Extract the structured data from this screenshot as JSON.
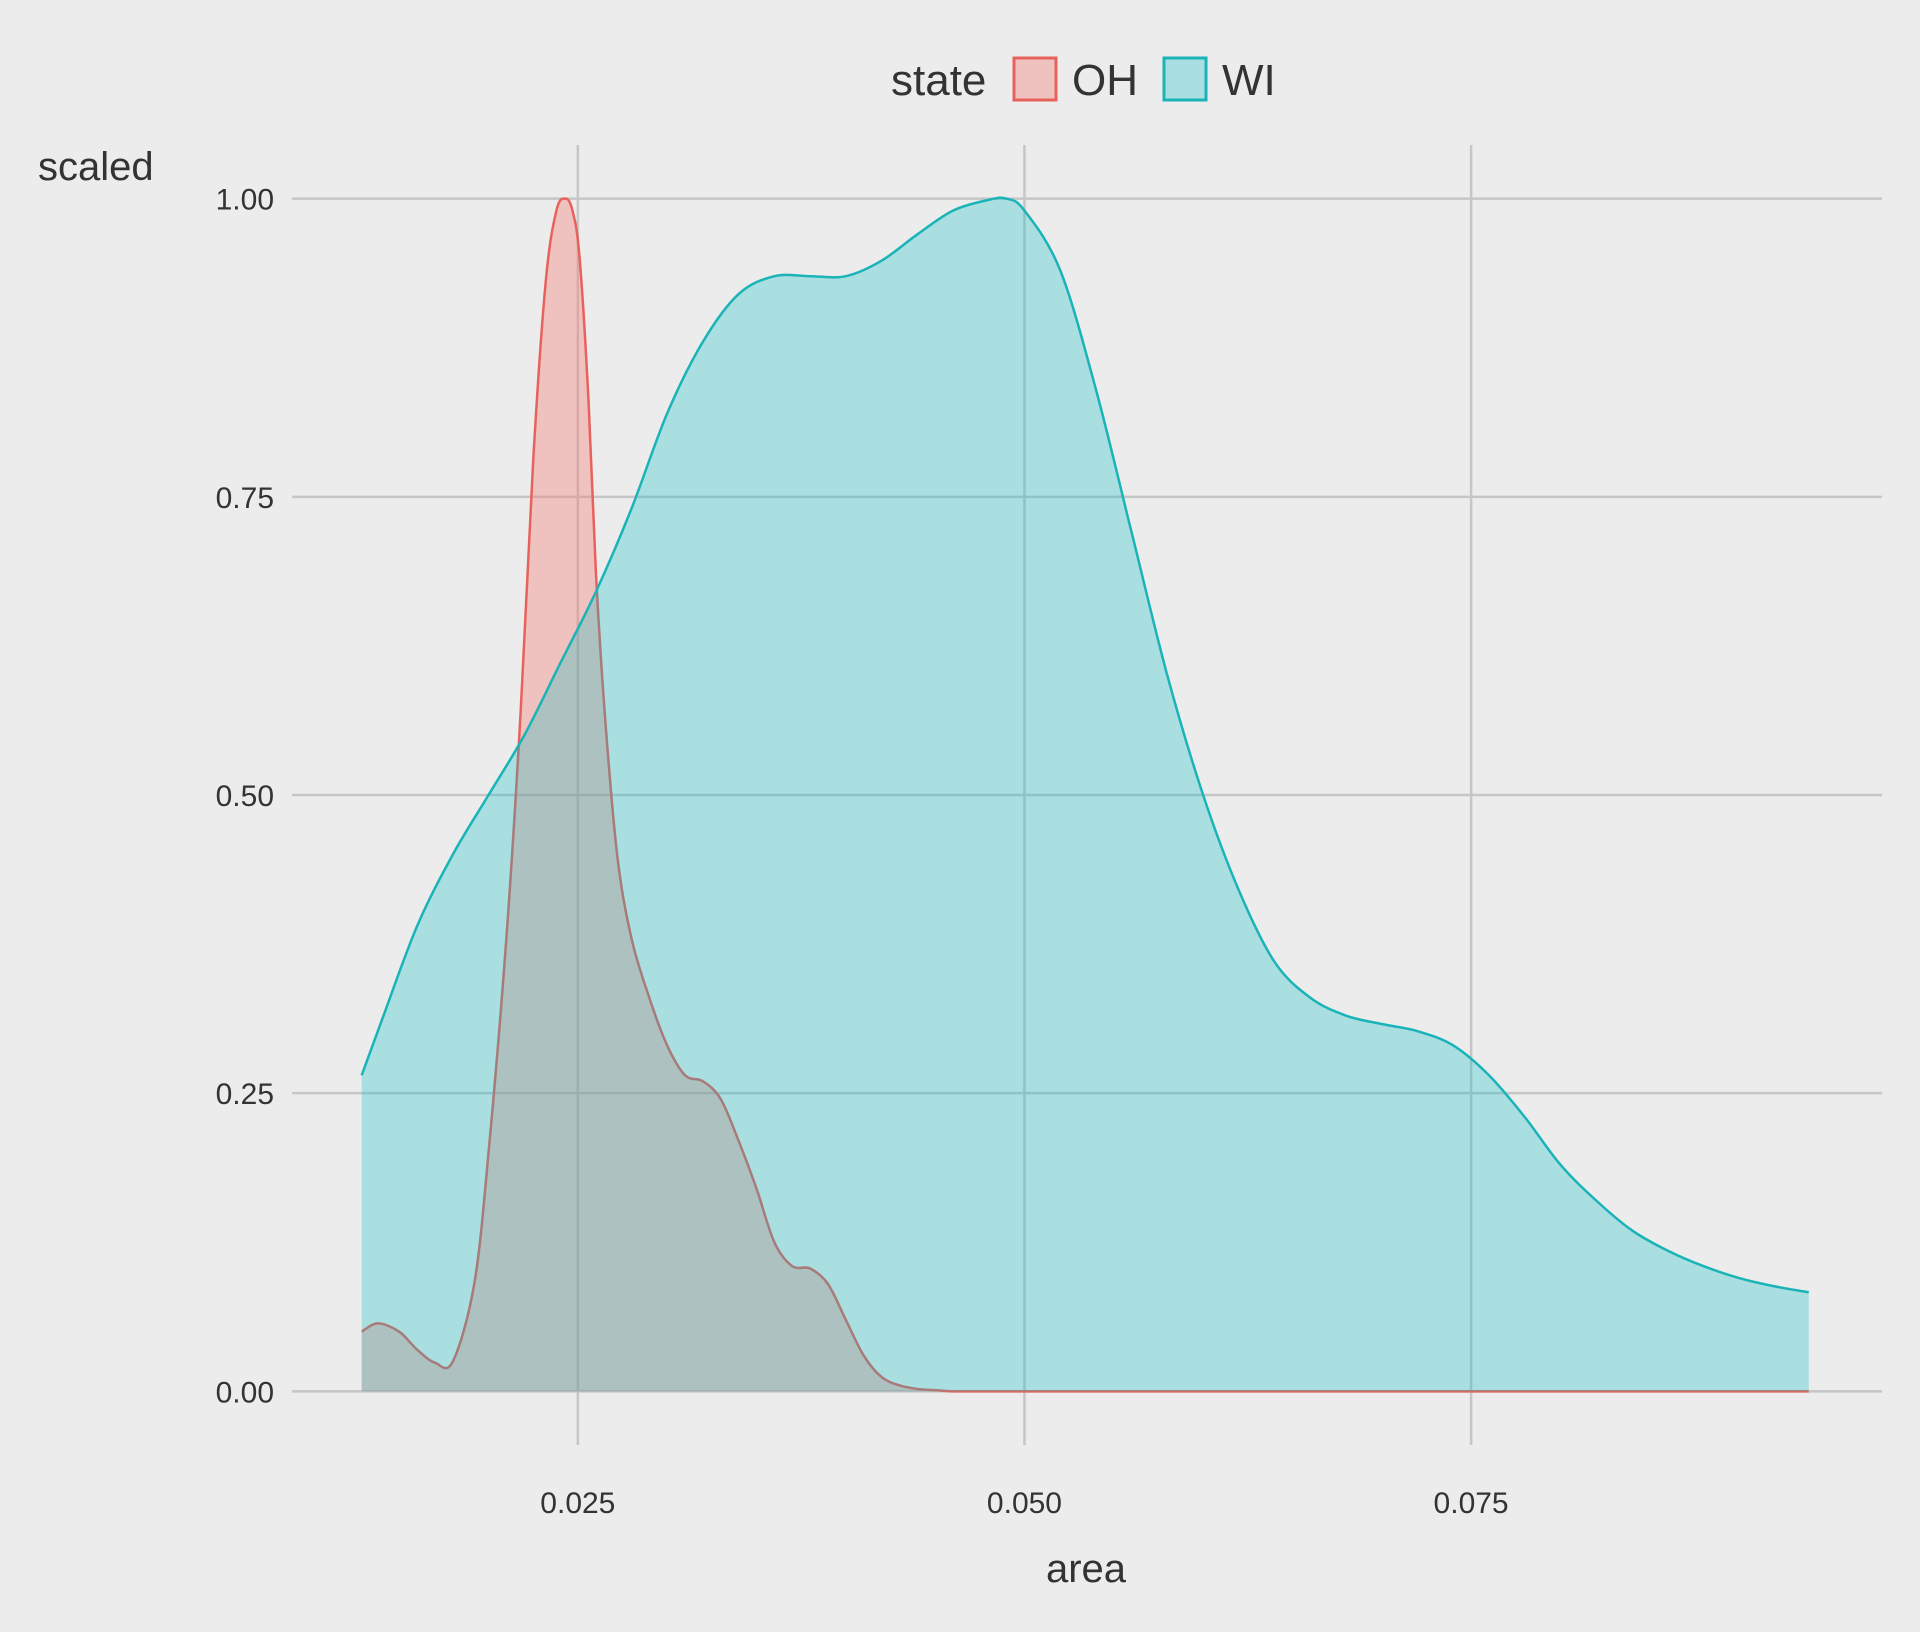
{
  "chart_data": {
    "type": "area",
    "xlabel": "area",
    "ylabel": "scaled",
    "xlim": [
      0.009,
      0.098
    ],
    "ylim": [
      -0.045,
      1.045
    ],
    "x_ticks": [
      0.025,
      0.05,
      0.075
    ],
    "x_tick_labels": [
      "0.025",
      "0.050",
      "0.075"
    ],
    "y_ticks": [
      0,
      0.25,
      0.5,
      0.75,
      1.0
    ],
    "y_tick_labels": [
      "0.00",
      "0.25",
      "0.50",
      "0.75",
      "1.00"
    ],
    "grid": true,
    "legend": {
      "title": "state",
      "placement": "top",
      "entries": [
        "OH",
        "WI"
      ]
    },
    "series": [
      {
        "name": "OH",
        "line_color": "#e8625c",
        "fill_color": "#f8766d",
        "x": [
          0.0129,
          0.0138,
          0.015,
          0.016,
          0.017,
          0.018,
          0.0192,
          0.02,
          0.021,
          0.0218,
          0.0225,
          0.0232,
          0.0238,
          0.0243,
          0.0247,
          0.0251,
          0.0256,
          0.026,
          0.0265,
          0.0272,
          0.028,
          0.029,
          0.03,
          0.031,
          0.032,
          0.033,
          0.034,
          0.035,
          0.036,
          0.037,
          0.038,
          0.039,
          0.04,
          0.041,
          0.042,
          0.043,
          0.044,
          0.045,
          0.046,
          0.047,
          0.048,
          0.05,
          0.06,
          0.07,
          0.08,
          0.09,
          0.0939
        ],
        "y": [
          0.05,
          0.057,
          0.05,
          0.035,
          0.024,
          0.025,
          0.09,
          0.2,
          0.38,
          0.57,
          0.78,
          0.93,
          0.99,
          1.0,
          0.99,
          0.95,
          0.83,
          0.69,
          0.57,
          0.45,
          0.38,
          0.33,
          0.29,
          0.265,
          0.26,
          0.245,
          0.21,
          0.17,
          0.125,
          0.105,
          0.103,
          0.09,
          0.06,
          0.03,
          0.012,
          0.005,
          0.002,
          0.001,
          0.0,
          0.0,
          0.0,
          0.0,
          0.0,
          0.0,
          0.0,
          0.0,
          0.0
        ]
      },
      {
        "name": "WI",
        "line_color": "#1ab3b8",
        "fill_color": "#00bfc4",
        "x": [
          0.0129,
          0.014,
          0.016,
          0.018,
          0.02,
          0.022,
          0.024,
          0.026,
          0.028,
          0.03,
          0.032,
          0.034,
          0.036,
          0.038,
          0.04,
          0.042,
          0.044,
          0.046,
          0.048,
          0.049,
          0.05,
          0.052,
          0.054,
          0.056,
          0.058,
          0.06,
          0.062,
          0.064,
          0.066,
          0.068,
          0.07,
          0.072,
          0.074,
          0.076,
          0.078,
          0.08,
          0.082,
          0.084,
          0.086,
          0.088,
          0.09,
          0.092,
          0.0939
        ],
        "y": [
          0.265,
          0.31,
          0.39,
          0.45,
          0.5,
          0.55,
          0.61,
          0.67,
          0.74,
          0.82,
          0.88,
          0.92,
          0.935,
          0.935,
          0.935,
          0.948,
          0.97,
          0.99,
          0.999,
          1.0,
          0.99,
          0.94,
          0.84,
          0.72,
          0.6,
          0.5,
          0.42,
          0.36,
          0.33,
          0.315,
          0.308,
          0.302,
          0.29,
          0.265,
          0.23,
          0.19,
          0.16,
          0.135,
          0.118,
          0.105,
          0.095,
          0.088,
          0.083
        ]
      }
    ]
  }
}
